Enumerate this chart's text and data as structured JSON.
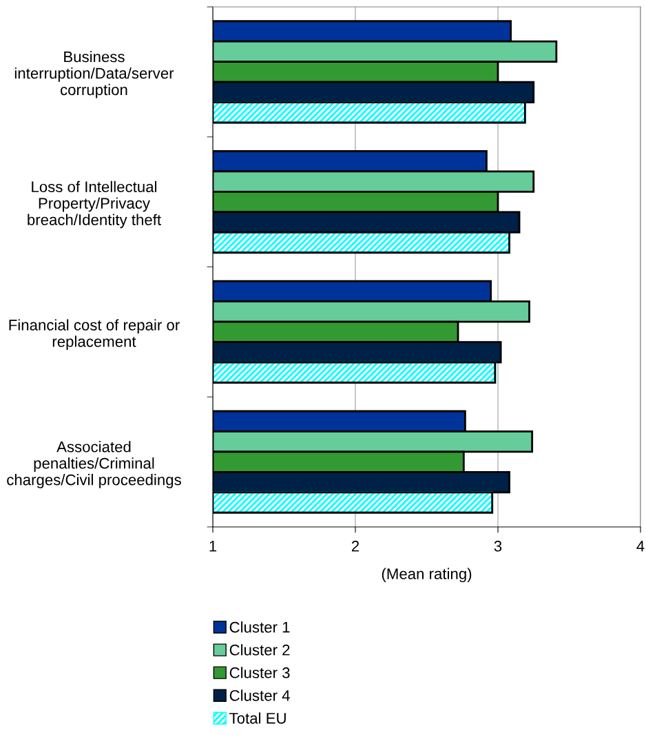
{
  "chart_data": {
    "type": "bar",
    "orientation": "horizontal",
    "categories": [
      "Business interruption/Data/server corruption",
      "Loss of Intellectual Property/Privacy breach/Identity theft",
      "Financial cost of repair or replacement",
      "Associated penalties/Criminal charges/Civil proceedings"
    ],
    "series": [
      {
        "name": "Cluster 1",
        "color": "#003399",
        "values": [
          3.09,
          2.92,
          2.95,
          2.77
        ]
      },
      {
        "name": "Cluster 2",
        "color": "#66cc99",
        "values": [
          3.41,
          3.25,
          3.22,
          3.24
        ]
      },
      {
        "name": "Cluster 3",
        "color": "#339933",
        "values": [
          3.0,
          3.0,
          2.72,
          2.76
        ]
      },
      {
        "name": "Cluster 4",
        "color": "#002147",
        "values": [
          3.25,
          3.15,
          3.02,
          3.08
        ]
      },
      {
        "name": "Total EU",
        "color": "#00ffff",
        "values": [
          3.19,
          3.08,
          2.98,
          2.96
        ]
      }
    ],
    "xlabel": "(Mean rating)",
    "xlim": [
      1,
      4
    ],
    "xticks": [
      1,
      2,
      3,
      4
    ],
    "grid": "x",
    "legend": "bottom"
  }
}
